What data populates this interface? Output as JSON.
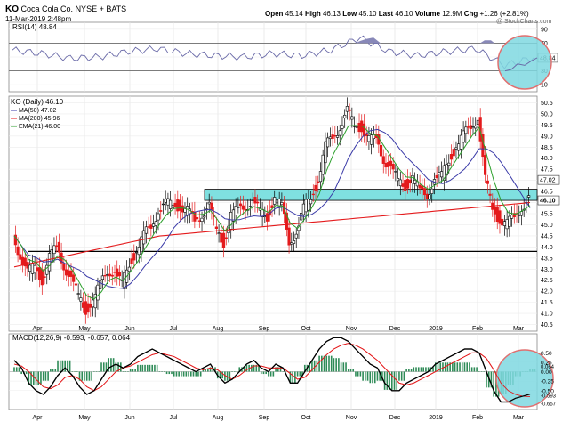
{
  "header": {
    "symbol": "KO",
    "company": "Coca Cola Co.",
    "exchange": "NYSE + BATS",
    "date": "11-Mar-2019 2:48pm",
    "quote": {
      "open_label": "Open",
      "open": "45.14",
      "high_label": "High",
      "high": "46.13",
      "low_label": "Low",
      "low": "45.10",
      "last_label": "Last",
      "last": "46.10",
      "volume_label": "Volume",
      "volume": "12.9M",
      "chg_label": "Chg",
      "chg": "+1.26 (+2.81%)"
    },
    "watermark": "@ StockCharts.com"
  },
  "colors": {
    "price_up": "#000000",
    "price_down": "#e41a1c",
    "ma50": "#3a3aa8",
    "ma200": "#e41a1c",
    "ema21": "#2ca02c",
    "rsi_line": "#6a6aa8",
    "macd_line": "#000000",
    "signal_line": "#e41a1c",
    "histogram": "#2e8b57",
    "zone_fill": "#7fe0e0",
    "highlight_circle": "#7fd8e0",
    "circle_stroke": "#e07070"
  },
  "chart_data": [
    {
      "type": "line",
      "panel": "rsi",
      "title": "RSI(14) 48.84",
      "ylim": [
        0,
        100
      ],
      "yticks": [
        10,
        30,
        50,
        70,
        90
      ],
      "levels": [
        30,
        70
      ],
      "current_label": "48.84",
      "x": [
        "2019-03-20",
        "2019-04-08",
        "2019-04-29",
        "2019-05-20",
        "2019-06-10",
        "2019-07-01",
        "2019-07-22",
        "2019-08-12",
        "2019-09-03",
        "2019-09-23",
        "2019-10-14",
        "2019-11-04",
        "2019-11-25",
        "2019-12-16",
        "2019-01-07",
        "2019-01-28",
        "2019-02-11",
        "2019-02-25",
        "2019-03-11"
      ],
      "values": [
        60,
        55,
        48,
        50,
        58,
        62,
        55,
        52,
        50,
        55,
        52,
        60,
        78,
        58,
        52,
        58,
        62,
        38,
        48.84
      ]
    },
    {
      "type": "line",
      "panel": "price",
      "title": "KO (Daily) 46.10",
      "legend": [
        {
          "name": "MA(50) 47.02",
          "key": "ma50"
        },
        {
          "name": "MA(200) 45.96",
          "key": "ma200"
        },
        {
          "name": "EMA(21) 46.00",
          "key": "ema21"
        }
      ],
      "ylim": [
        40.2,
        50.8
      ],
      "yticks": [
        40.5,
        41.0,
        41.5,
        42.0,
        42.5,
        43.0,
        43.5,
        44.0,
        44.5,
        45.0,
        45.5,
        46.0,
        46.5,
        47.0,
        47.5,
        48.0,
        48.5,
        49.0,
        49.5,
        50.0,
        50.5
      ],
      "price_label": "46.10",
      "ma50_label": "47.02",
      "ma200_label": "45.96",
      "x_labels": [
        "Apr",
        "May",
        "Jun",
        "Jul",
        "Aug",
        "Sep",
        "Oct",
        "Nov",
        "Dec",
        "2019",
        "Feb",
        "Mar"
      ],
      "support_level": 43.8,
      "resistance_zone": [
        46.1,
        46.6
      ],
      "close": [
        44.5,
        43.6,
        42.8,
        43.2,
        42.5,
        43.5,
        44.0,
        43.2,
        42.5,
        41.8,
        41.2,
        41.5,
        42.3,
        43.0,
        42.8,
        42.3,
        43.3,
        43.8,
        44.5,
        45.0,
        45.6,
        45.9,
        46.0,
        45.8,
        45.6,
        45.2,
        45.5,
        45.8,
        44.8,
        44.2,
        45.4,
        45.7,
        45.9,
        46.0,
        45.6,
        45.4,
        46.2,
        45.8,
        44.3,
        44.6,
        45.7,
        46.3,
        47.0,
        48.5,
        49.0,
        49.4,
        50.1,
        49.5,
        49.4,
        48.8,
        48.9,
        48.0,
        47.5,
        47.0,
        46.8,
        47.1,
        46.5,
        46.4,
        47.0,
        47.2,
        48.0,
        48.5,
        49.0,
        49.5,
        49.8,
        47.0,
        45.8,
        45.2,
        45.0,
        45.4,
        45.8,
        46.1
      ]
    },
    {
      "type": "line",
      "panel": "macd",
      "title": "MACD(12,26,9) -0.593, -0.657, 0.064",
      "ylim": [
        -1.0,
        1.0
      ],
      "yticks": [
        0.5,
        0.25,
        0.0,
        -0.25,
        -0.5
      ],
      "current_labels": [
        "0.064",
        "-0.593",
        "-0.657"
      ],
      "macd": [
        0.3,
        0.1,
        -0.3,
        -0.5,
        -0.6,
        -0.4,
        -0.1,
        0.1,
        -0.1,
        -0.4,
        -0.6,
        -0.5,
        -0.2,
        0.1,
        0.2,
        0.1,
        0.2,
        0.4,
        0.5,
        0.6,
        0.5,
        0.4,
        0.3,
        0.2,
        0.1,
        0.0,
        0.1,
        0.2,
        -0.1,
        -0.3,
        -0.2,
        0.0,
        0.2,
        0.3,
        0.1,
        0.0,
        0.2,
        0.1,
        -0.3,
        -0.3,
        0.0,
        0.3,
        0.6,
        0.8,
        0.9,
        0.9,
        0.8,
        0.6,
        0.4,
        0.2,
        0.1,
        -0.3,
        -0.5,
        -0.5,
        -0.3,
        -0.2,
        -0.1,
        0.0,
        0.2,
        0.3,
        0.4,
        0.5,
        0.6,
        0.6,
        0.5,
        0.0,
        -0.5,
        -0.8,
        -0.8,
        -0.7,
        -0.65,
        -0.593
      ],
      "signal": [
        0.2,
        0.15,
        0.0,
        -0.2,
        -0.4,
        -0.45,
        -0.35,
        -0.15,
        -0.1,
        -0.2,
        -0.4,
        -0.5,
        -0.4,
        -0.2,
        0.0,
        0.1,
        0.15,
        0.25,
        0.35,
        0.45,
        0.5,
        0.45,
        0.4,
        0.3,
        0.2,
        0.1,
        0.05,
        0.1,
        0.05,
        -0.1,
        -0.2,
        -0.1,
        0.05,
        0.15,
        0.15,
        0.1,
        0.1,
        0.1,
        -0.05,
        -0.2,
        -0.15,
        0.05,
        0.25,
        0.45,
        0.6,
        0.7,
        0.75,
        0.7,
        0.6,
        0.45,
        0.3,
        0.1,
        -0.1,
        -0.3,
        -0.35,
        -0.3,
        -0.2,
        -0.1,
        0.0,
        0.1,
        0.2,
        0.3,
        0.4,
        0.5,
        0.5,
        0.35,
        0.05,
        -0.3,
        -0.5,
        -0.6,
        -0.65,
        -0.657
      ]
    }
  ]
}
